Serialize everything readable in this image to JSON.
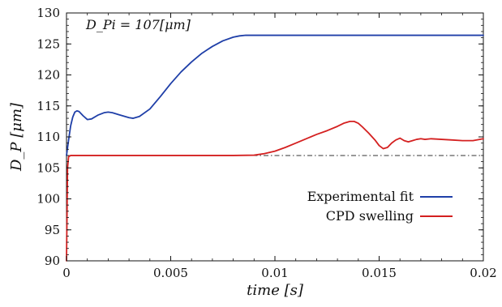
{
  "chart_data": {
    "type": "line",
    "title": "",
    "xlabel": "time [s]",
    "ylabel": "D_P [μm]",
    "xlim": [
      0,
      0.02
    ],
    "ylim": [
      90,
      130
    ],
    "x_ticks": [
      0,
      0.005,
      0.01,
      0.015,
      0.02
    ],
    "x_tick_labels": [
      "0",
      "0.005",
      "0.01",
      "0.015",
      "0.02"
    ],
    "y_ticks": [
      90,
      95,
      100,
      105,
      110,
      115,
      120,
      125,
      130
    ],
    "y_tick_labels": [
      "90",
      "95",
      "100",
      "105",
      "110",
      "115",
      "120",
      "125",
      "130"
    ],
    "grid": false,
    "legend_position": "bottom-right",
    "annotation": "D_Pi = 107[μm]",
    "reference_line": {
      "y": 107,
      "style": "dash-dot",
      "color": "#333333"
    },
    "series": [
      {
        "name": "Experimental fit",
        "color": "#1f3fa8",
        "x": [
          0,
          0.0001,
          0.0002,
          0.0003,
          0.0004,
          0.0005,
          0.0006,
          0.0008,
          0.001,
          0.0012,
          0.0015,
          0.0018,
          0.002,
          0.0022,
          0.0025,
          0.0028,
          0.003,
          0.0032,
          0.0035,
          0.004,
          0.0045,
          0.005,
          0.0055,
          0.006,
          0.0065,
          0.007,
          0.0075,
          0.008,
          0.0083,
          0.0086,
          0.009,
          0.01,
          0.012,
          0.014,
          0.016,
          0.018,
          0.02
        ],
        "y": [
          107,
          109.5,
          111.8,
          113.2,
          114,
          114.2,
          114.1,
          113.4,
          112.8,
          112.9,
          113.5,
          113.9,
          114,
          113.9,
          113.6,
          113.3,
          113.1,
          113,
          113.3,
          114.5,
          116.5,
          118.6,
          120.5,
          122.1,
          123.5,
          124.6,
          125.5,
          126.1,
          126.3,
          126.4,
          126.4,
          126.4,
          126.4,
          126.4,
          126.4,
          126.4,
          126.4
        ]
      },
      {
        "name": "CPD swelling",
        "color": "#d42020",
        "x": [
          0,
          5e-05,
          0.0001,
          0.0002,
          0.0005,
          0.001,
          0.002,
          0.004,
          0.006,
          0.008,
          0.009,
          0.0095,
          0.01,
          0.0105,
          0.011,
          0.0115,
          0.012,
          0.0125,
          0.013,
          0.0133,
          0.0136,
          0.0138,
          0.014,
          0.0142,
          0.0145,
          0.0148,
          0.015,
          0.0152,
          0.0154,
          0.0156,
          0.0158,
          0.016,
          0.0162,
          0.0164,
          0.0166,
          0.0168,
          0.017,
          0.0172,
          0.0175,
          0.018,
          0.0185,
          0.019,
          0.0195,
          0.02
        ],
        "y": [
          90,
          105,
          106.8,
          107,
          107,
          107,
          107,
          107,
          107,
          107,
          107.05,
          107.3,
          107.7,
          108.3,
          109,
          109.7,
          110.4,
          111,
          111.7,
          112.2,
          112.5,
          112.5,
          112.2,
          111.6,
          110.6,
          109.5,
          108.6,
          108.1,
          108.3,
          109,
          109.5,
          109.8,
          109.4,
          109.2,
          109.4,
          109.6,
          109.7,
          109.6,
          109.7,
          109.6,
          109.5,
          109.4,
          109.4,
          109.7
        ]
      }
    ]
  }
}
